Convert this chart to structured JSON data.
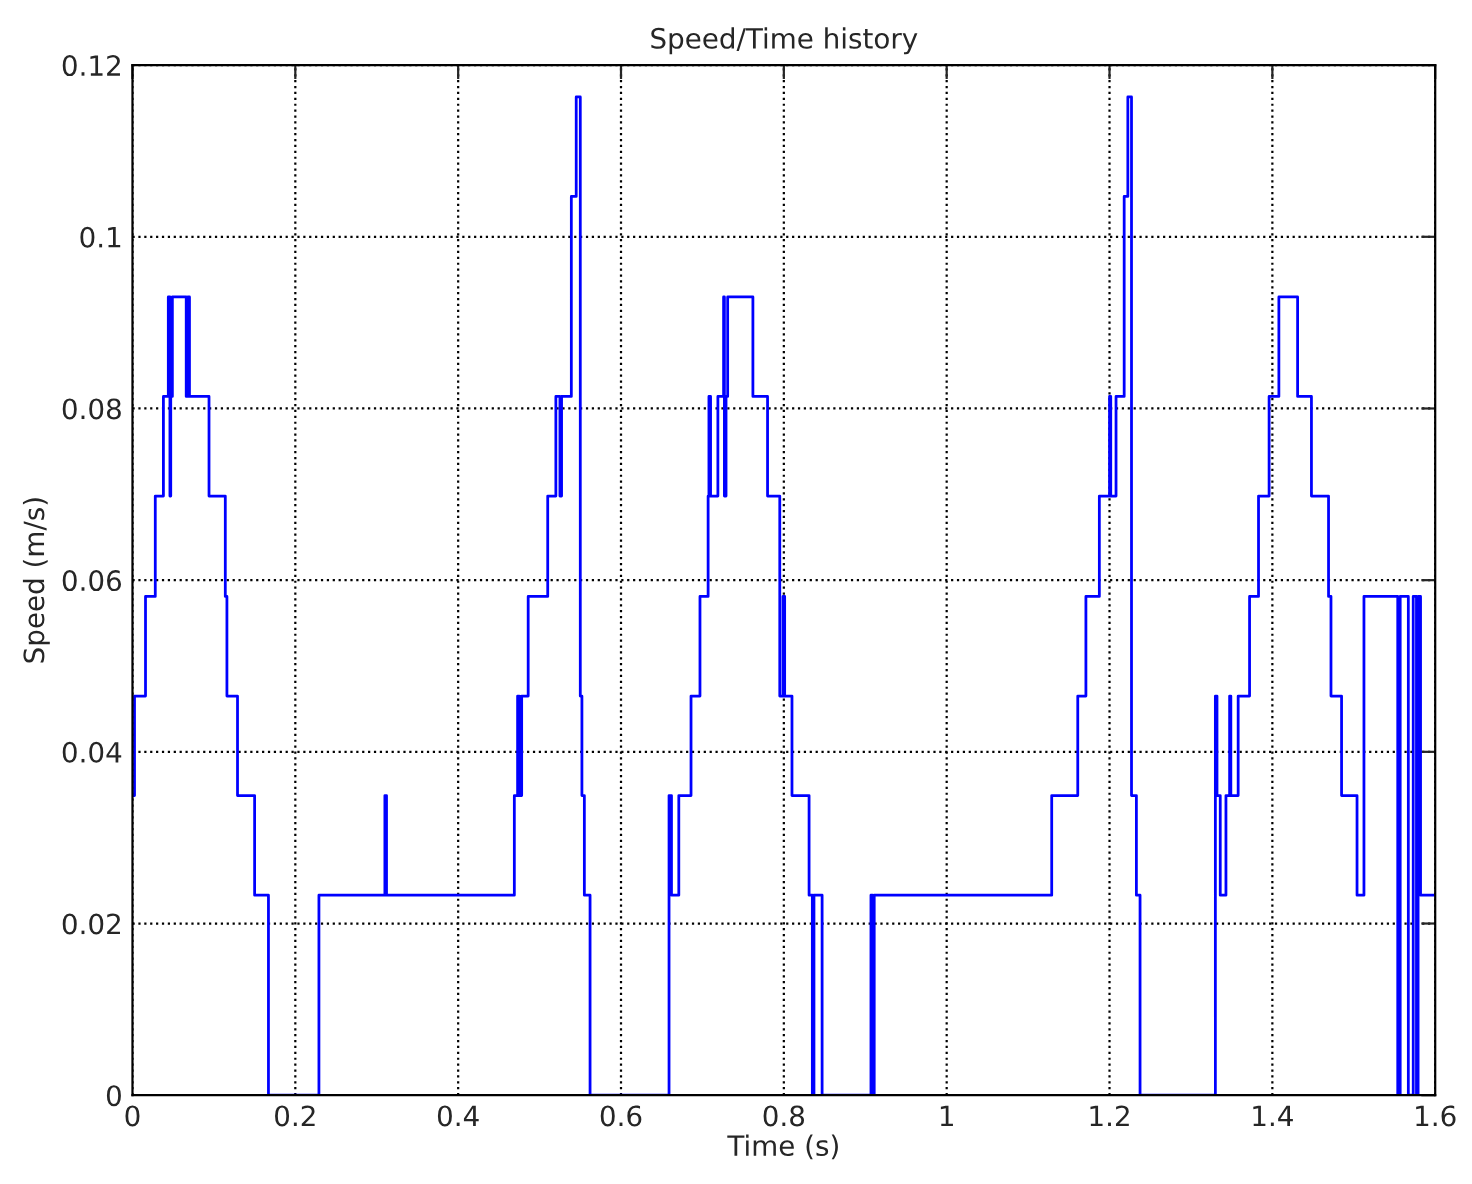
{
  "chart_data": {
    "type": "step",
    "title": "Speed/Time history",
    "xlabel": "Time (s)",
    "ylabel": "Speed (m/s)",
    "xlim": [
      0,
      1.6
    ],
    "ylim": [
      0,
      0.12
    ],
    "xticks": [
      0,
      0.2,
      0.4,
      0.6,
      0.8,
      1,
      1.2,
      1.4,
      1.6
    ],
    "yticks": [
      0,
      0.02,
      0.04,
      0.06,
      0.08,
      0.1,
      0.12
    ],
    "grid": true,
    "line_style": "solid",
    "marker": "none",
    "series": [
      {
        "color": "#0000ff",
        "x": [
          0,
          0.0025,
          0.016,
          0.028,
          0.038,
          0.044,
          0.046,
          0.047,
          0.049,
          0.066,
          0.068,
          0.07,
          0.076,
          0.094,
          0.114,
          0.116,
          0.129,
          0.15,
          0.167,
          0.229,
          0.31,
          0.312,
          0.469,
          0.473,
          0.475,
          0.478,
          0.486,
          0.51,
          0.52,
          0.525,
          0.527,
          0.539,
          0.545,
          0.55,
          0.552,
          0.555,
          0.562,
          0.659,
          0.662,
          0.671,
          0.686,
          0.697,
          0.707,
          0.708,
          0.71,
          0.719,
          0.726,
          0.727,
          0.729,
          0.731,
          0.762,
          0.78,
          0.795,
          0.799,
          0.801,
          0.81,
          0.831,
          0.835,
          0.837,
          0.847,
          0.907,
          0.909,
          0.911,
          1.129,
          1.161,
          1.171,
          1.1875,
          1.2,
          1.2015,
          1.208,
          1.218,
          1.2225,
          1.227,
          1.233,
          1.2375,
          1.33,
          1.332,
          1.336,
          1.343,
          1.3475,
          1.349,
          1.358,
          1.372,
          1.383,
          1.396,
          1.408,
          1.431,
          1.448,
          1.469,
          1.472,
          1.485,
          1.504,
          1.5125,
          1.554,
          1.557,
          1.567,
          1.573,
          1.577,
          1.579,
          1.582,
          1.6
        ],
        "values": [
          0.0349,
          0.0465,
          0.0581,
          0.0698,
          0.0814,
          0.093,
          0.0698,
          0.0814,
          0.093,
          0.0814,
          0.093,
          0.0814,
          0.0814,
          0.0698,
          0.0581,
          0.0465,
          0.0349,
          0.0233,
          0,
          0.0233,
          0.0349,
          0.0233,
          0.0349,
          0.0465,
          0.0349,
          0.0465,
          0.0581,
          0.0698,
          0.0814,
          0.0698,
          0.0814,
          0.1047,
          0.1163,
          0.0465,
          0.0349,
          0.0233,
          0,
          0.0349,
          0.0233,
          0.0349,
          0.0465,
          0.0581,
          0.0698,
          0.0814,
          0.0698,
          0.0814,
          0.093,
          0.0698,
          0.0814,
          0.093,
          0.0814,
          0.0698,
          0.0465,
          0.0581,
          0.0465,
          0.0349,
          0.0233,
          0,
          0.0233,
          0,
          0.0233,
          0,
          0.0233,
          0.0349,
          0.0465,
          0.0581,
          0.0698,
          0.0814,
          0.0698,
          0.0814,
          0.1047,
          0.1163,
          0.0349,
          0.0233,
          0,
          0.0465,
          0.0349,
          0.0233,
          0.0349,
          0.0465,
          0.0349,
          0.0465,
          0.0581,
          0.0698,
          0.0814,
          0.093,
          0.0814,
          0.0698,
          0.0581,
          0.0465,
          0.0349,
          0.0233,
          0.0581,
          0,
          0.0581,
          0,
          0.0581,
          0,
          0.0581,
          0.0233,
          0.0233
        ]
      }
    ]
  }
}
